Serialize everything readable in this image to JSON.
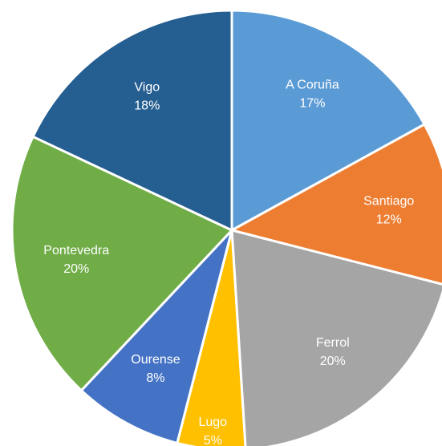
{
  "chart_data": {
    "type": "pie",
    "categories": [
      "A Coruña",
      "Santiago",
      "Ferrol",
      "Lugo",
      "Ourense",
      "Pontevedra",
      "Vigo"
    ],
    "values": [
      17,
      12,
      20,
      5,
      8,
      20,
      18
    ],
    "value_labels": [
      "17%",
      "12%",
      "20%",
      "5%",
      "8%",
      "20%",
      "18%"
    ],
    "colors": [
      "#5b9bd5",
      "#ed7d31",
      "#a5a5a5",
      "#ffc000",
      "#4472c4",
      "#70ad47",
      "#255e91"
    ]
  }
}
